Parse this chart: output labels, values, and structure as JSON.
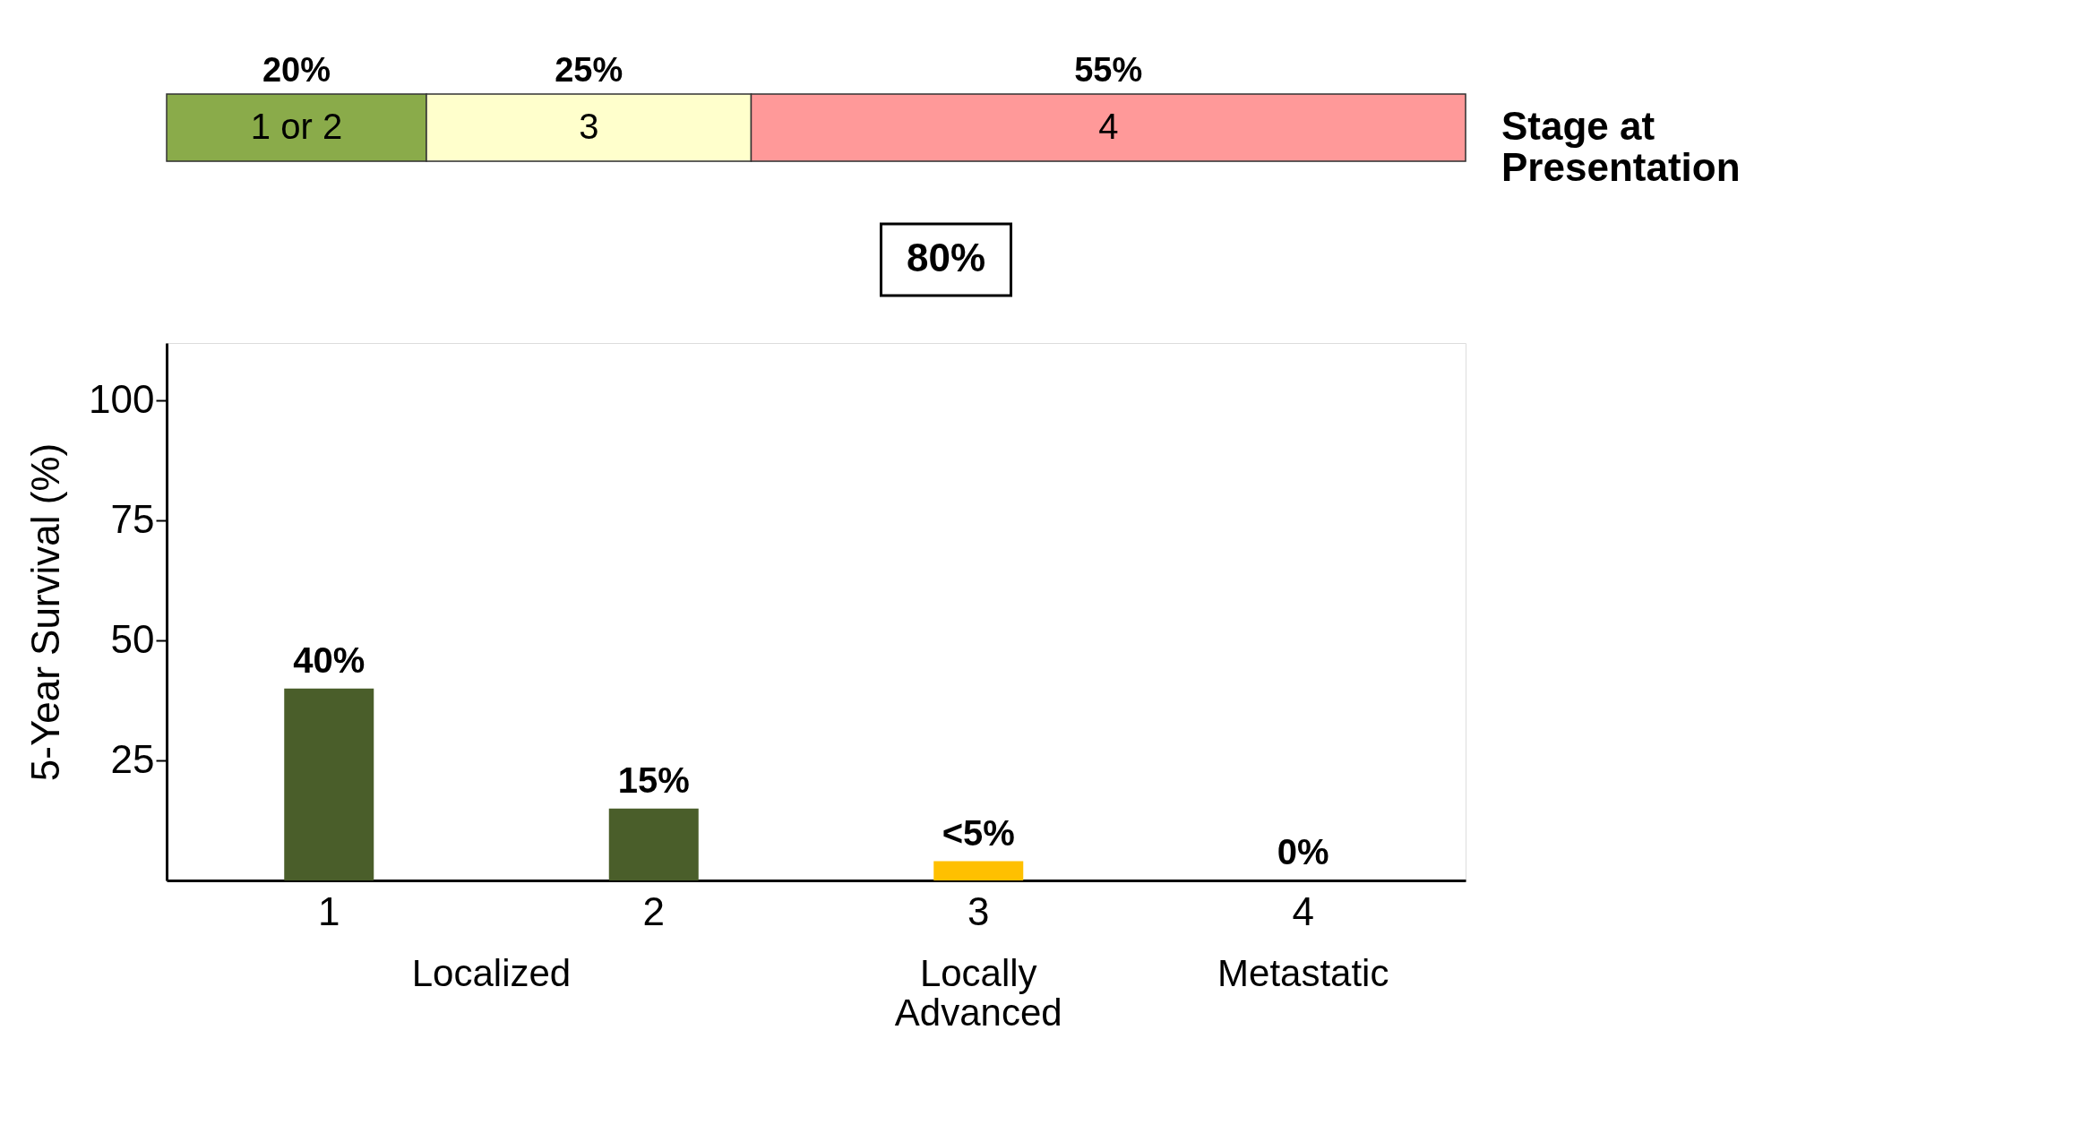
{
  "chart_data": [
    {
      "type": "bar",
      "orientation": "horizontal",
      "stacked": true,
      "categories": [
        null
      ],
      "series": [
        {
          "name": "1 or 2",
          "color": "#8aab4a",
          "values": [
            20
          ],
          "value_labels": [
            "20%"
          ]
        },
        {
          "name": "3",
          "color": "#ffffcc",
          "values": [
            25
          ],
          "value_labels": [
            "25%"
          ]
        },
        {
          "name": "4",
          "color": "#ff9999",
          "values": [
            55
          ],
          "value_labels": [
            "55%"
          ]
        }
      ],
      "tick_labels": false,
      "legend": false,
      "annotations": [
        "Stage at Presentation",
        "80%"
      ]
    },
    {
      "type": "bar",
      "categories": [
        "1",
        "2",
        "3",
        "4"
      ],
      "values": [
        40,
        15,
        4,
        0
      ],
      "colors": [
        "#4a5e2a",
        "#4a5e2a",
        "#ffc000",
        "#4a5e2a"
      ],
      "value_labels": [
        "40%",
        "15%",
        "<5%",
        "0%"
      ],
      "ylabel": "5-Year Survival (%)",
      "ylim": [
        0,
        112
      ],
      "yticks": [
        25,
        50,
        75,
        100
      ],
      "grid": false,
      "legend": false,
      "annotations": [
        "Localized",
        "Locally Advanced",
        "Metastatic"
      ]
    }
  ]
}
